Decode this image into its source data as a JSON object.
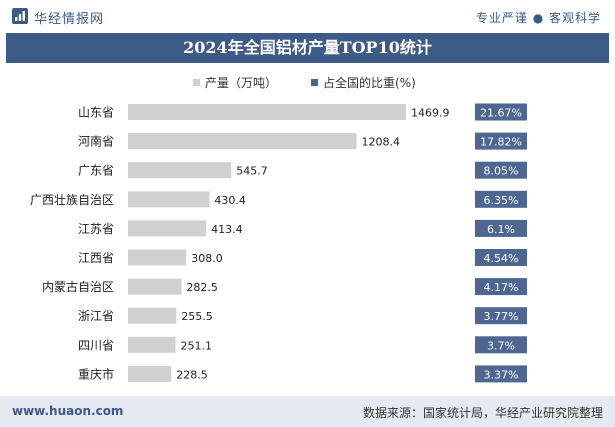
{
  "header": {
    "brand": "华经情报网",
    "slogan": "专业严谨 ● 客观科学"
  },
  "chart_data": {
    "type": "bar",
    "title": "2024年全国铝材产量TOP10统计",
    "categories": [
      "山东省",
      "河南省",
      "广东省",
      "广西壮族自治区",
      "江苏省",
      "江西省",
      "内蒙古自治区",
      "浙江省",
      "四川省",
      "重庆市"
    ],
    "series": [
      {
        "name": "产量（万吨）",
        "values": [
          1469.9,
          1208.4,
          545.7,
          430.4,
          413.4,
          308.0,
          282.5,
          255.5,
          251.1,
          228.5
        ],
        "labels": [
          "1469.9",
          "1208.4",
          "545.7",
          "430.4",
          "413.4",
          "308.0",
          "282.5",
          "255.5",
          "251.1",
          "228.5"
        ]
      },
      {
        "name": "占全国的比重(%)",
        "values": [
          21.67,
          17.82,
          8.05,
          6.35,
          6.1,
          4.54,
          4.17,
          3.77,
          3.7,
          3.37
        ],
        "labels": [
          "21.67%",
          "17.82%",
          "8.05%",
          "6.35%",
          "6.1%",
          "4.54%",
          "4.17%",
          "3.77%",
          "3.7%",
          "3.37%"
        ]
      }
    ],
    "colors": {
      "bar": "#d0d0d0",
      "badge": "#4d6692",
      "title_bg": "#3e5a86"
    },
    "legend_position": "top-center",
    "grid": false
  },
  "footer": {
    "website": "www.huaon.com",
    "source": "数据来源：国家统计局，华经产业研究院整理"
  }
}
